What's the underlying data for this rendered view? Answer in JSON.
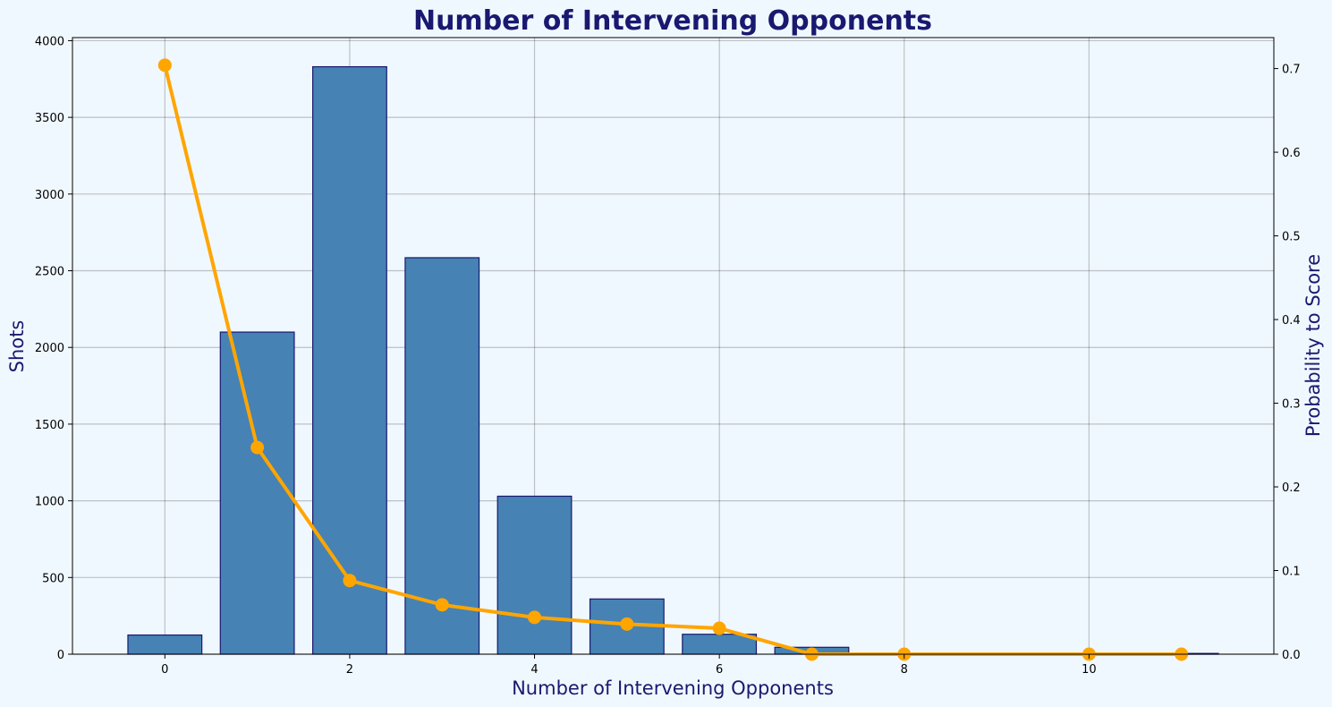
{
  "chart_data": {
    "type": "bar",
    "title": "Number of Intervening Opponents",
    "xlabel": "Number of Intervening Opponents",
    "ylabel": "Shots",
    "ylabel_right": "Probability to Score",
    "xlim": [
      -1,
      12
    ],
    "ylim": [
      0,
      4020
    ],
    "ylim_right": [
      0,
      0.737
    ],
    "x_ticks": [
      0,
      2,
      4,
      6,
      8,
      10
    ],
    "y_ticks": [
      0,
      500,
      1000,
      1500,
      2000,
      2500,
      3000,
      3500,
      4000
    ],
    "y_ticks_right": [
      0.0,
      0.1,
      0.2,
      0.3,
      0.4,
      0.5,
      0.6,
      0.7
    ],
    "grid": true,
    "series": [
      {
        "type": "bar",
        "axis": "left",
        "color": "#4682b4",
        "edge_color": "#191970",
        "x": [
          0,
          1,
          2,
          3,
          4,
          5,
          6,
          7,
          8,
          10,
          11
        ],
        "values": [
          125,
          2100,
          3830,
          2585,
          1030,
          360,
          130,
          45,
          0,
          0,
          5
        ]
      },
      {
        "type": "line",
        "axis": "right",
        "color": "#ffa500",
        "x": [
          0,
          1,
          2,
          3,
          4,
          5,
          6,
          7,
          8,
          10,
          11
        ],
        "values": [
          0.704,
          0.247,
          0.088,
          0.059,
          0.044,
          0.036,
          0.031,
          0.0,
          0.0,
          0.0,
          0.0
        ]
      }
    ]
  }
}
